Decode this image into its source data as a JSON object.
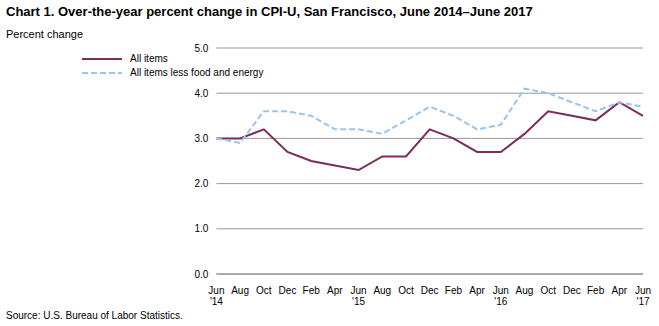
{
  "chart_data": {
    "type": "line",
    "title": "Chart 1. Over-the-year percent change in CPI-U, San Francisco, June 2014–June 2017",
    "y_label": "Percent change",
    "source": "Source: U.S. Bureau of Labor Statistics.",
    "categories": [
      "Jun '14",
      "Aug",
      "Oct",
      "Dec",
      "Feb",
      "Apr",
      "Jun '15",
      "Aug",
      "Oct",
      "Dec",
      "Feb",
      "Apr",
      "Jun '16",
      "Aug",
      "Oct",
      "Dec",
      "Feb",
      "Apr",
      "Jun '17"
    ],
    "series": [
      {
        "name": "All items",
        "color": "#7b2c5a",
        "line_style": "solid",
        "values": [
          3.0,
          3.0,
          3.2,
          2.7,
          2.5,
          2.4,
          2.3,
          2.6,
          2.6,
          3.2,
          3.0,
          2.7,
          2.7,
          3.1,
          3.6,
          3.5,
          3.4,
          3.8,
          3.5
        ]
      },
      {
        "name": "All items less food and energy",
        "color": "#99c4ec",
        "line_style": "dashed",
        "values": [
          3.0,
          2.9,
          3.6,
          3.6,
          3.5,
          3.2,
          3.2,
          3.1,
          3.4,
          3.7,
          3.5,
          3.2,
          3.3,
          4.1,
          4.0,
          3.8,
          3.6,
          3.8,
          3.7
        ]
      }
    ],
    "ylim": [
      0,
      5
    ],
    "yticks": [
      {
        "value": 0,
        "label": "0.0"
      },
      {
        "value": 1,
        "label": "1.0"
      },
      {
        "value": 2,
        "label": "2.0"
      },
      {
        "value": 3,
        "label": "3.0"
      },
      {
        "value": 4,
        "label": "4.0"
      },
      {
        "value": 5,
        "label": "5.0"
      }
    ],
    "grid": true,
    "legend": "upper left"
  }
}
